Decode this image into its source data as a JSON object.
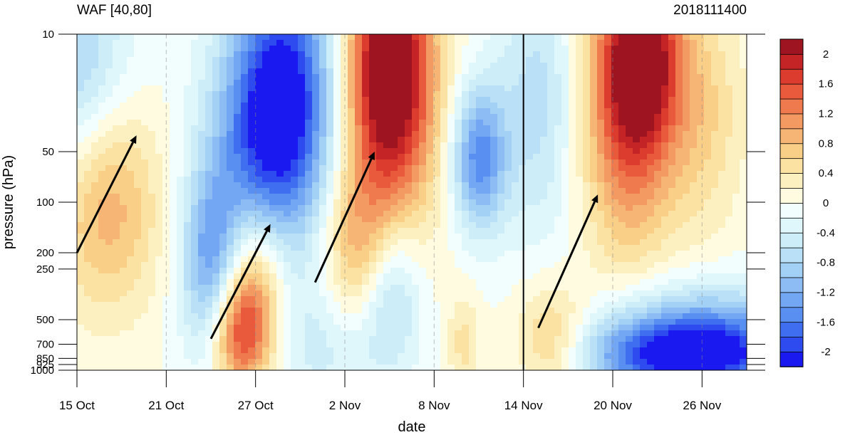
{
  "chart_data": {
    "type": "heatmap",
    "title_left": "WAF [40,80]",
    "title_right": "2018111400",
    "xlabel": "date",
    "ylabel": "pressure (hPa)",
    "x_ticks": [
      {
        "date": "2018-10-15",
        "label": "15 Oct"
      },
      {
        "date": "2018-10-21",
        "label": "21 Oct"
      },
      {
        "date": "2018-10-27",
        "label": "27 Oct"
      },
      {
        "date": "2018-11-02",
        "label": "2 Nov"
      },
      {
        "date": "2018-11-08",
        "label": "8 Nov"
      },
      {
        "date": "2018-11-14",
        "label": "14 Nov"
      },
      {
        "date": "2018-11-20",
        "label": "20 Nov"
      },
      {
        "date": "2018-11-26",
        "label": "26 Nov"
      }
    ],
    "xlim": [
      "2018-10-15",
      "2018-11-29"
    ],
    "y_ticks": [
      {
        "value": 10,
        "label": "10"
      },
      {
        "value": 50,
        "label": "50"
      },
      {
        "value": 100,
        "label": "100"
      },
      {
        "value": 200,
        "label": "200"
      },
      {
        "value": 250,
        "label": "250"
      },
      {
        "value": 500,
        "label": "500"
      },
      {
        "value": 700,
        "label": "700"
      },
      {
        "value": 850,
        "label": "850"
      },
      {
        "value": 925,
        "label": "925"
      },
      {
        "value": 1000,
        "label": "1000"
      }
    ],
    "ylim": [
      1000,
      10
    ],
    "y_scale": "log",
    "forecast_start_line": "2018-11-14",
    "colorbar": {
      "levels": [
        -2.2,
        -2.0,
        -1.8,
        -1.6,
        -1.4,
        -1.2,
        -1.0,
        -0.8,
        -0.6,
        -0.4,
        -0.2,
        0.0,
        0.2,
        0.4,
        0.6,
        0.8,
        1.0,
        1.2,
        1.4,
        1.6,
        1.8,
        2.0,
        2.2
      ],
      "colors": [
        "#1a1af0",
        "#2e4bf0",
        "#3f6ef0",
        "#5a8ff2",
        "#74a7f3",
        "#8cbcf3",
        "#a3d0f5",
        "#b9e0f7",
        "#cdeef9",
        "#dff6fb",
        "#f2fdfd",
        "#fffbe0",
        "#fdf0c0",
        "#fbe1a2",
        "#f9cf88",
        "#f6b574",
        "#f39962",
        "#ee7a4e",
        "#e85a3b",
        "#db3c2e",
        "#c42425",
        "#9e1421"
      ],
      "tick_labels": [
        {
          "value": 2.0,
          "label": "2"
        },
        {
          "value": 1.6,
          "label": "1.6"
        },
        {
          "value": 1.2,
          "label": "1.2"
        },
        {
          "value": 0.8,
          "label": "0.8"
        },
        {
          "value": 0.4,
          "label": "0.4"
        },
        {
          "value": 0.0,
          "label": "0"
        },
        {
          "value": -0.4,
          "label": "-0.4"
        },
        {
          "value": -0.8,
          "label": "-0.8"
        },
        {
          "value": -1.2,
          "label": "-1.2"
        },
        {
          "value": -1.6,
          "label": "-1.6"
        },
        {
          "value": -2.0,
          "label": "-2"
        }
      ]
    },
    "field_features": [
      {
        "name": "pos-1",
        "date": "2018-10-17",
        "p": 100,
        "value": 1.0,
        "dt": 2.5,
        "dlog": 0.45
      },
      {
        "name": "neg-1",
        "date": "2018-10-15",
        "p": 15,
        "value": -0.9,
        "dt": 2.5,
        "dlog": 0.5
      },
      {
        "name": "neg-2",
        "date": "2018-10-24",
        "p": 250,
        "value": -1.3,
        "dt": 1.4,
        "dlog": 0.4
      },
      {
        "name": "neg-3",
        "date": "2018-10-28",
        "p": 50,
        "value": -1.6,
        "dt": 2.8,
        "dlog": 0.5
      },
      {
        "name": "neg-3b",
        "date": "2018-10-29",
        "p": 15,
        "value": -1.4,
        "dt": 2.5,
        "dlog": 0.5
      },
      {
        "name": "pos-2",
        "date": "2018-10-26",
        "p": 600,
        "value": 1.7,
        "dt": 1.5,
        "dlog": 0.25
      },
      {
        "name": "pos-2b",
        "date": "2018-10-27",
        "p": 250,
        "value": 0.9,
        "dt": 1.5,
        "dlog": 0.3
      },
      {
        "name": "pos-3",
        "date": "2018-11-05",
        "p": 40,
        "value": 1.5,
        "dt": 2.2,
        "dlog": 0.55
      },
      {
        "name": "pos-3b",
        "date": "2018-11-03",
        "p": 200,
        "value": 0.9,
        "dt": 1.8,
        "dlog": 0.35
      },
      {
        "name": "pos-3c",
        "date": "2018-11-05",
        "p": 12,
        "value": 1.7,
        "dt": 2.0,
        "dlog": 0.4
      },
      {
        "name": "neg-4",
        "date": "2018-11-11",
        "p": 55,
        "value": -1.5,
        "dt": 1.3,
        "dlog": 0.3
      },
      {
        "name": "neg-5",
        "date": "2018-11-05",
        "p": 280,
        "value": -1.1,
        "dt": 1.5,
        "dlog": 0.35
      },
      {
        "name": "neg-6",
        "date": "2018-11-15",
        "p": 25,
        "value": -0.7,
        "dt": 2.0,
        "dlog": 0.6
      },
      {
        "name": "pos-4",
        "date": "2018-11-21",
        "p": 30,
        "value": 1.4,
        "dt": 2.2,
        "dlog": 0.6
      },
      {
        "name": "pos-4b",
        "date": "2018-11-22",
        "p": 12,
        "value": 1.7,
        "dt": 1.8,
        "dlog": 0.4
      },
      {
        "name": "pos-5",
        "date": "2018-11-16",
        "p": 700,
        "value": 0.9,
        "dt": 1.8,
        "dlog": 0.25
      },
      {
        "name": "pos-6",
        "date": "2018-11-26",
        "p": 30,
        "value": 0.6,
        "dt": 2.0,
        "dlog": 0.5
      },
      {
        "name": "neg-7",
        "date": "2018-11-25",
        "p": 850,
        "value": -1.9,
        "dt": 5.0,
        "dlog": 0.16
      },
      {
        "name": "neg-7b",
        "date": "2018-11-26",
        "p": 550,
        "value": -1.0,
        "dt": 5.0,
        "dlog": 0.2
      },
      {
        "name": "neg-8",
        "date": "2018-11-01",
        "p": 700,
        "value": -0.5,
        "dt": 3.0,
        "dlog": 0.3
      },
      {
        "name": "pos-7",
        "date": "2018-11-10",
        "p": 700,
        "value": 0.5,
        "dt": 0.8,
        "dlog": 0.2
      }
    ],
    "arrows": [
      {
        "from": {
          "date": "2018-10-15",
          "p": 200
        },
        "to": {
          "date": "2018-10-19",
          "p": 40
        }
      },
      {
        "from": {
          "date": "2018-10-24",
          "p": 650
        },
        "to": {
          "date": "2018-10-28",
          "p": 135
        }
      },
      {
        "from": {
          "date": "2018-10-31",
          "p": 300
        },
        "to": {
          "date": "2018-11-04",
          "p": 50
        }
      },
      {
        "from": {
          "date": "2018-11-15",
          "p": 560
        },
        "to": {
          "date": "2018-11-19",
          "p": 90
        }
      }
    ]
  }
}
